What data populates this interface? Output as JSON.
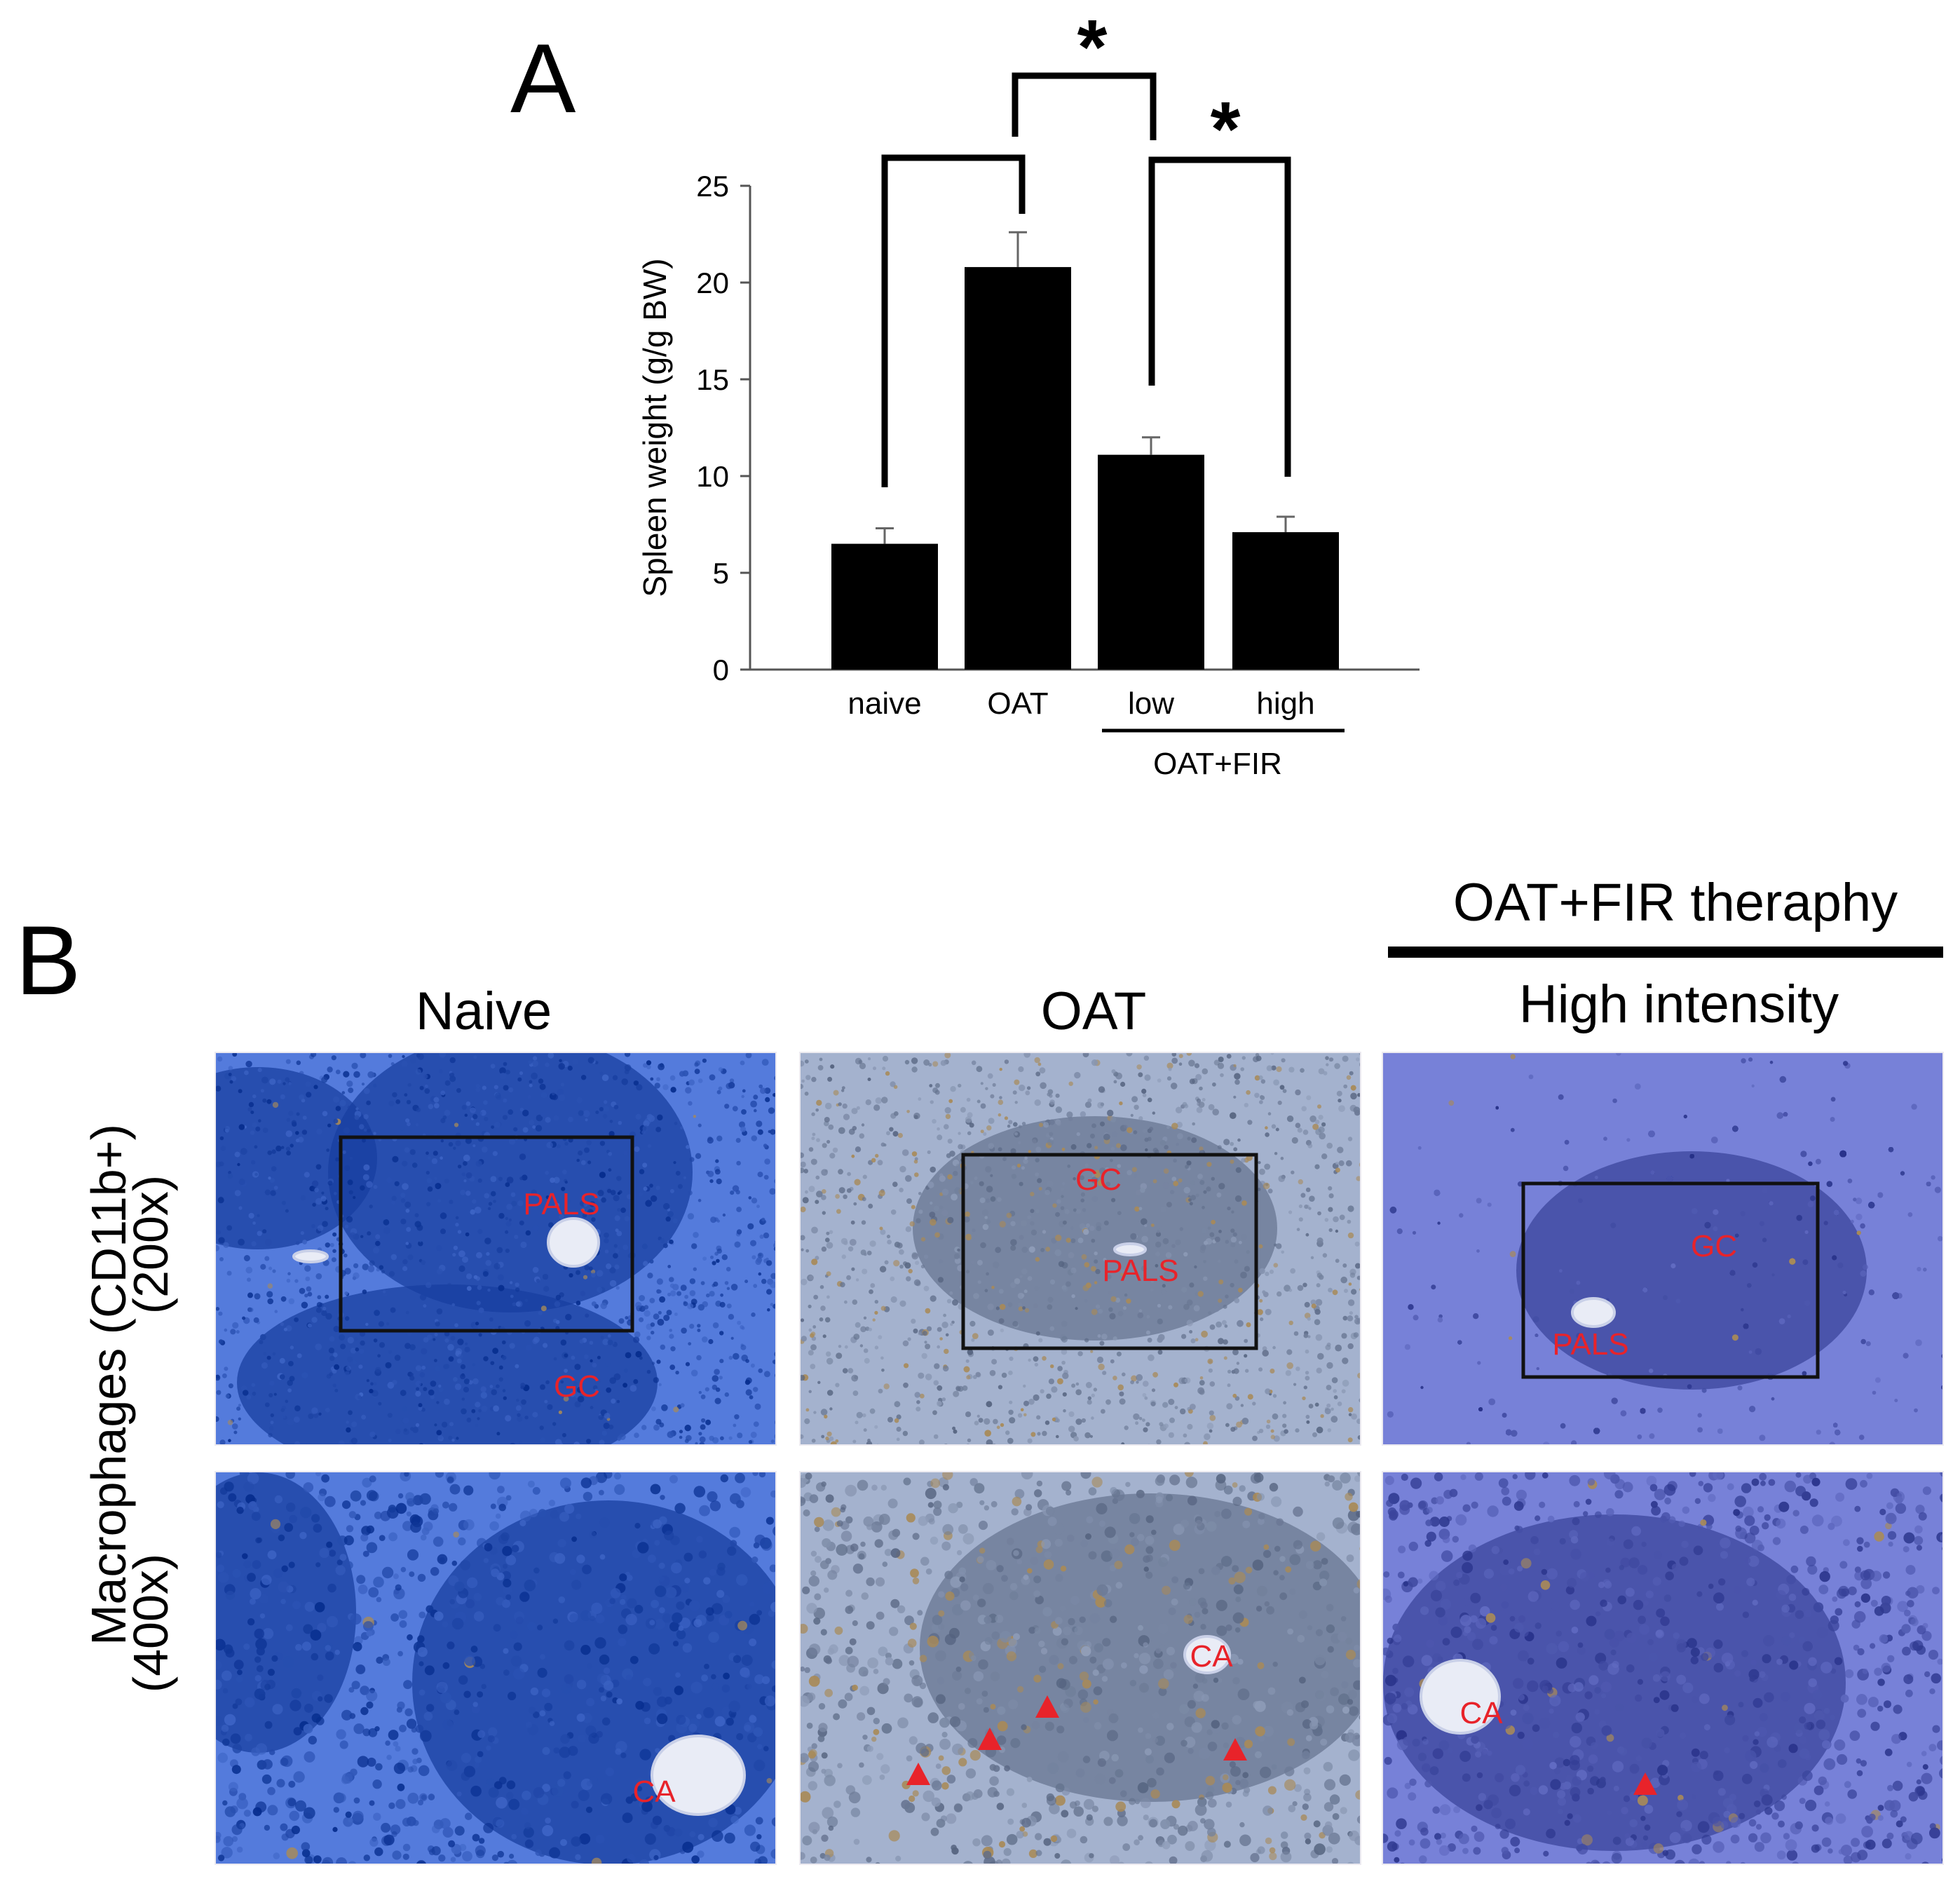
{
  "panel_a": {
    "letter": "A",
    "chart_data": {
      "type": "bar",
      "categories": [
        "naive",
        "OAT",
        "low",
        "high"
      ],
      "values": [
        6.5,
        20.8,
        11.1,
        7.1
      ],
      "errors": [
        0.8,
        1.8,
        0.9,
        0.8
      ],
      "ylabel": "Spleen weight (g/g BW)",
      "ylim": [
        0,
        25
      ],
      "yticks": [
        "0",
        "5",
        "10",
        "15",
        "20",
        "25"
      ],
      "group_label": "OAT+FIR",
      "group_members": [
        "low",
        "high"
      ],
      "significance": [
        {
          "pair": [
            "OAT",
            "low"
          ],
          "mark": "*"
        },
        {
          "pair": [
            "low",
            "high"
          ],
          "mark": "*"
        },
        {
          "pair": [
            "naive",
            "OAT"
          ],
          "mark": ""
        }
      ],
      "bar_color": "#000000",
      "grid": false
    }
  },
  "panel_b": {
    "letter": "B",
    "therapy_header": "OAT+FIR theraphy",
    "columns": [
      "Naive",
      "OAT",
      "High intensity"
    ],
    "row_axis_label": "Macrophages (CD11b+)",
    "rows": [
      "(200x)",
      "(400x)"
    ],
    "labels": {
      "naive_200": [
        "PALS",
        "GC"
      ],
      "oat_200": [
        "GC",
        "PALS"
      ],
      "high_200": [
        "GC",
        "PALS"
      ],
      "naive_400": [
        "CA"
      ],
      "oat_400": [
        "CA"
      ],
      "high_400": [
        "CA"
      ]
    },
    "label_color": "#e8232a",
    "stain_colors": {
      "naive": "#2c53b4",
      "oat": "#7c8aa6",
      "high": "#4f59b0"
    }
  }
}
